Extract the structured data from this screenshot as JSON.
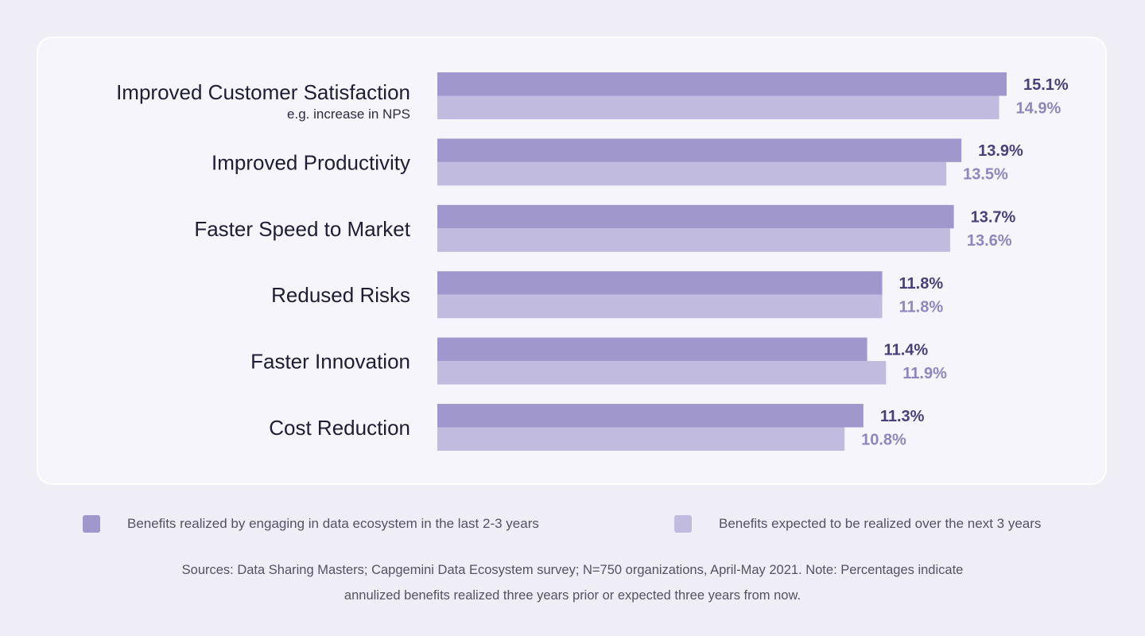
{
  "chart_data": {
    "type": "bar",
    "orientation": "horizontal",
    "categories": [
      "Improved Customer Satisfaction",
      "Improved Productivity",
      "Faster Speed to Market",
      "Redused Risks",
      "Faster Innovation",
      "Cost Reduction"
    ],
    "category_notes": [
      "e.g. increase in NPS",
      "",
      "",
      "",
      "",
      ""
    ],
    "series": [
      {
        "name": "Benefits realized by engaging in data ecosystem in the last 2-3 years",
        "values": [
          15.1,
          13.9,
          13.7,
          11.8,
          11.4,
          11.3
        ],
        "color": "#a097cd",
        "label_color": "#4a3f7a"
      },
      {
        "name": "Benefits expected to be realized over the next 3 years",
        "values": [
          14.9,
          13.5,
          13.6,
          11.8,
          11.9,
          10.8
        ],
        "color": "#c1bbe0",
        "label_color": "#8f86bd"
      }
    ],
    "value_suffix": "%",
    "xlim": [
      0,
      15.1
    ],
    "legend_position": "bottom",
    "grid": false
  },
  "footnote": {
    "line1": "Sources: Data Sharing Masters; Capgemini Data Ecosystem survey; N=750 organizations, April-May 2021. Note: Percentages indicate",
    "line2": "annulized benefits realized three years prior or expected three years from now."
  }
}
